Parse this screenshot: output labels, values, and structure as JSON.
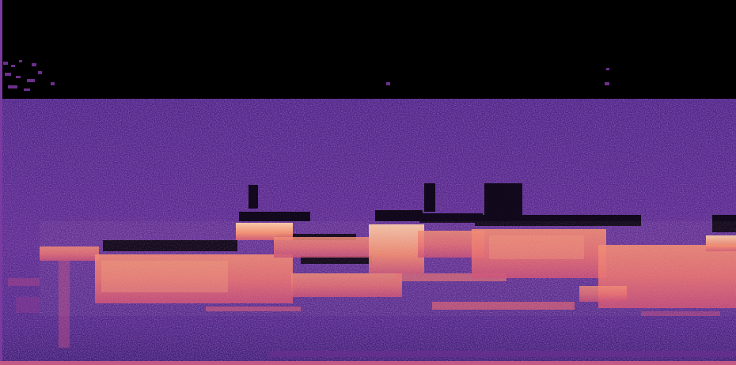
{
  "image": {
    "kind": "spectrogram",
    "colormap": "magma",
    "colors": {
      "background": "#000000",
      "low": "#3b1f7a",
      "mid": "#8e2f9a",
      "high": "#e86a6a",
      "peak": "#ffd6b0"
    }
  }
}
